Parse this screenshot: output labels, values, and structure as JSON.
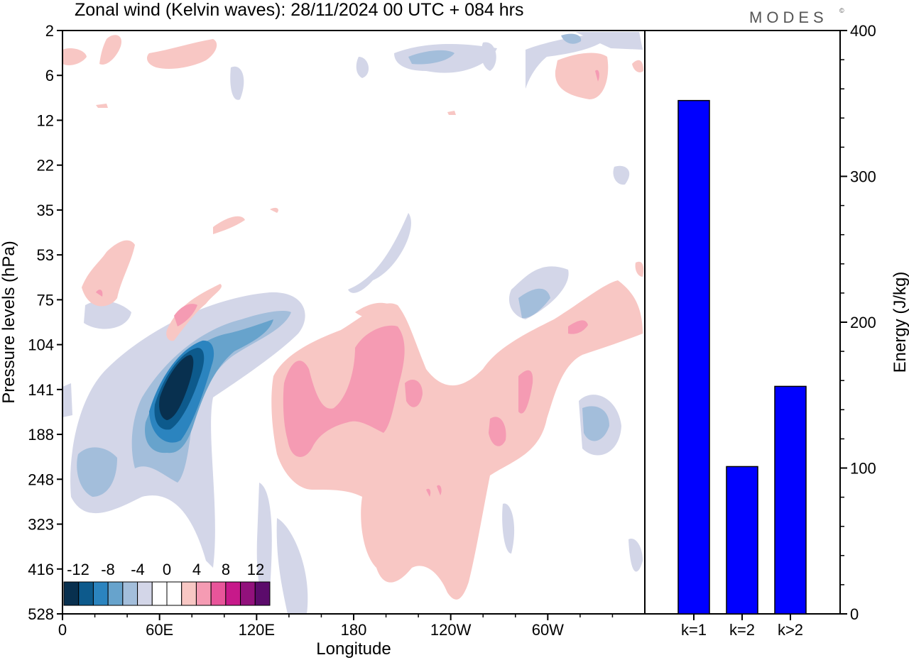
{
  "title": "Zonal wind (Kelvin waves):  28/11/2024  00 UTC  + 084 hrs",
  "logo": "MODES",
  "logo_mark": "©",
  "chart_data": [
    {
      "type": "heatmap",
      "subtype": "filled-contour",
      "xlabel": "Longitude",
      "ylabel": "Pressure levels (hPa)",
      "x_ticks": [
        "0",
        "60E",
        "120E",
        "180",
        "120W",
        "60W"
      ],
      "y_ticks": [
        "2",
        "6",
        "12",
        "22",
        "35",
        "53",
        "75",
        "104",
        "141",
        "188",
        "248",
        "323",
        "416",
        "528"
      ],
      "y_scale": "log-pressure (top = 2 hPa, bottom = 528 hPa)",
      "colorbar": {
        "labels": [
          "-12",
          "-8",
          "-4",
          "0",
          "4",
          "8",
          "12"
        ],
        "levels": [
          -14,
          -12,
          -10,
          -8,
          -6,
          -4,
          -2,
          0,
          2,
          4,
          6,
          8,
          10,
          12,
          14
        ],
        "colors": [
          "#08304f",
          "#0d5a8c",
          "#2b84bf",
          "#67a3cc",
          "#a3bedb",
          "#d3d6e8",
          "#ffffff",
          "#ffffff",
          "#f8c7c4",
          "#f59bb3",
          "#e8559a",
          "#c7198a",
          "#92117c",
          "#5b0b6b"
        ]
      },
      "features": [
        {
          "label": "negative core",
          "lon": 75,
          "pressure": 160,
          "min": -14
        },
        {
          "label": "negative band",
          "lon": 90,
          "pressure": 120,
          "min": -6
        },
        {
          "label": "positive region",
          "lon": 180,
          "pressure": 170,
          "max": 6
        },
        {
          "label": "positive region",
          "lon": 225,
          "pressure": 160,
          "max": 6
        },
        {
          "label": "positive band",
          "lon": 300,
          "pressure": 110,
          "max": 6
        }
      ]
    },
    {
      "type": "bar",
      "categories": [
        "k=1",
        "k=2",
        "k>2"
      ],
      "values": [
        352,
        101,
        156
      ],
      "ylabel": "Energy (J/kg)",
      "ylim": [
        0,
        400
      ],
      "y_ticks": [
        "0",
        "100",
        "200",
        "300",
        "400"
      ],
      "bar_color": "#0000ff"
    }
  ]
}
